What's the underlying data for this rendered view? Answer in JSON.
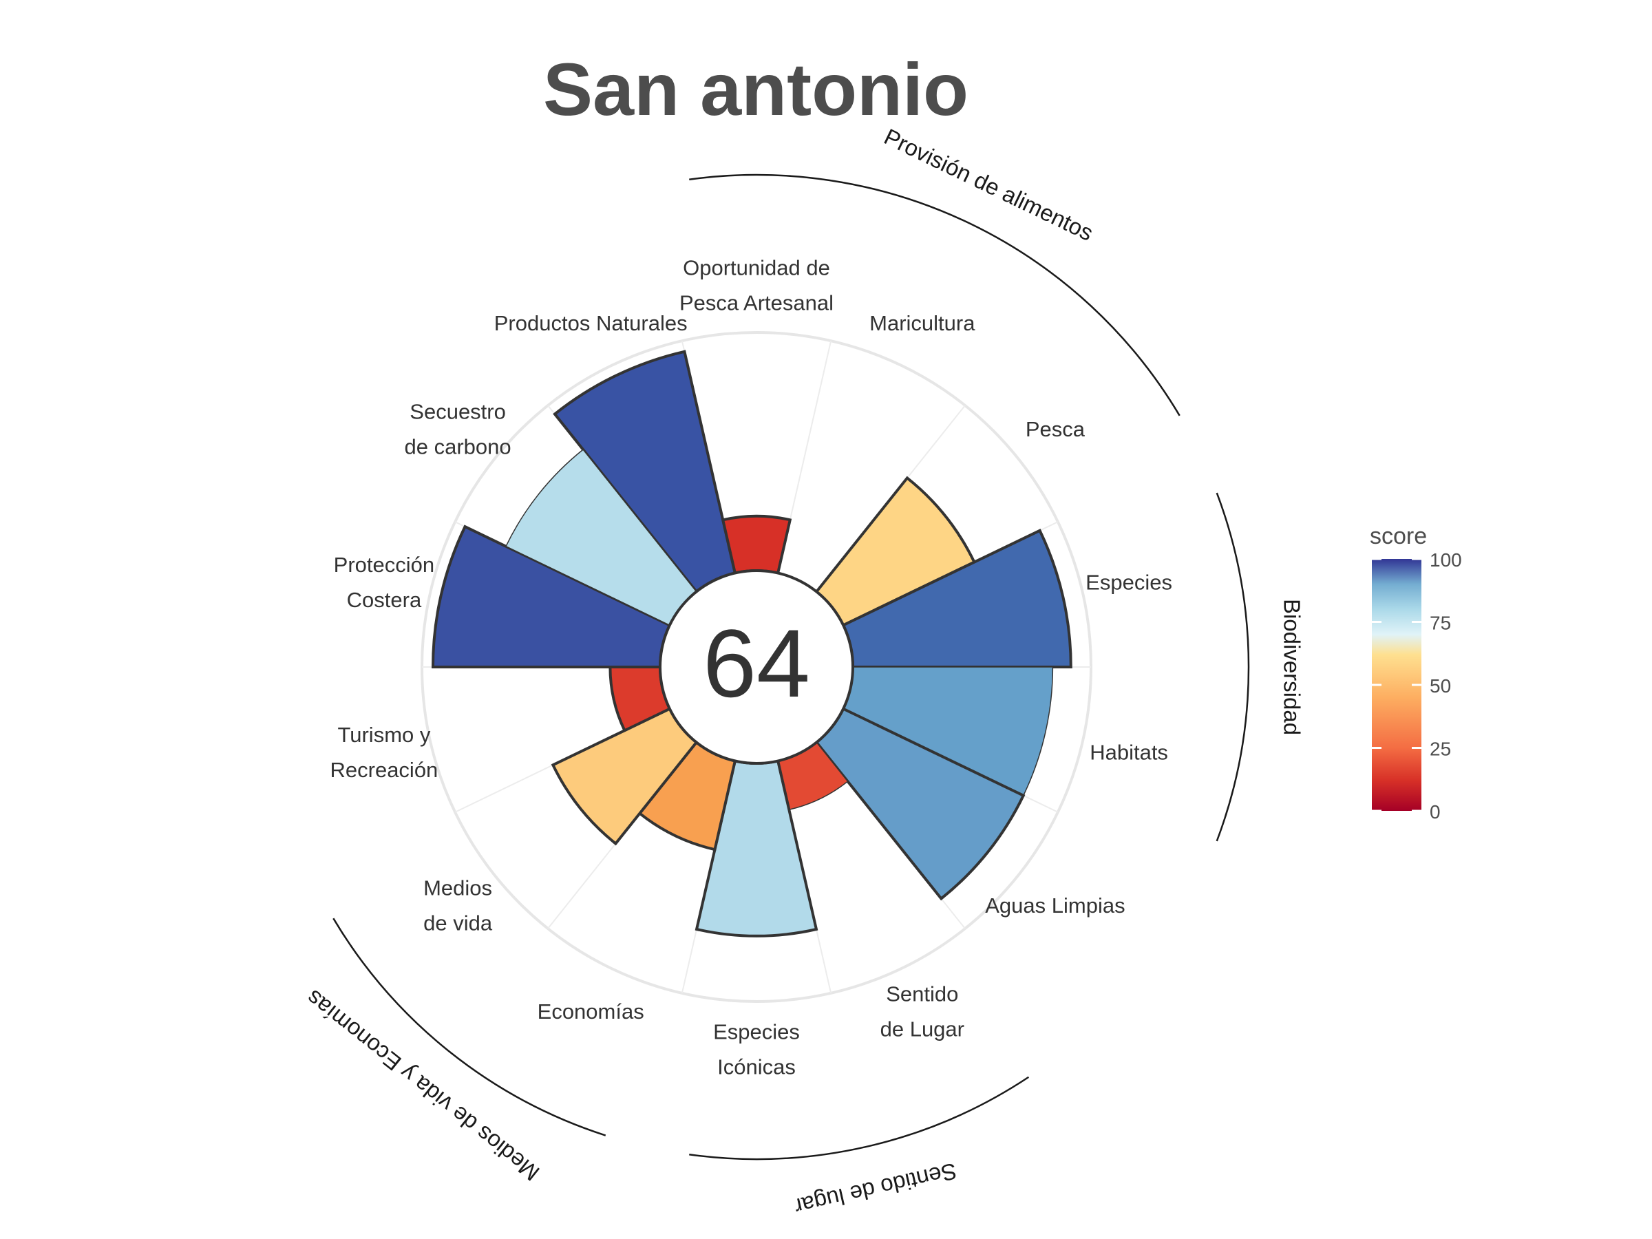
{
  "chart_data": {
    "type": "polar-bar",
    "title": "San antonio",
    "center_score": "64",
    "legend": {
      "title": "score",
      "ticks": [
        0,
        25,
        50,
        75,
        100
      ],
      "position": "right"
    },
    "rlim": [
      0,
      100
    ],
    "petals": [
      {
        "label": [
          "Productos Naturales"
        ],
        "value": 100,
        "color": "#3953a4",
        "outlined": true
      },
      {
        "label": [
          "Oportunidad de",
          "Pesca Artesanal"
        ],
        "value": 24,
        "color": "#d73027",
        "outlined": true
      },
      {
        "label": [
          "Maricultura"
        ],
        "value": 0,
        "color": "#ffffff",
        "outlined": false
      },
      {
        "label": [
          "Pesca"
        ],
        "value": 64,
        "color": "#fed585",
        "outlined": true
      },
      {
        "label": [
          "Especies"
        ],
        "value": 96,
        "color": "#4169ae",
        "outlined": true
      },
      {
        "label": [
          "Habitats"
        ],
        "value": 88,
        "color": "#65a0ca",
        "outlined": false
      },
      {
        "label": [
          "Aguas Limpias"
        ],
        "value": 88,
        "color": "#659dc9",
        "outlined": true
      },
      {
        "label": [
          "Sentido",
          "de Lugar"
        ],
        "value": 22,
        "color": "#e34a33",
        "outlined": false
      },
      {
        "label": [
          "Especies",
          "Icónicas"
        ],
        "value": 76,
        "color": "#b2daea",
        "outlined": true
      },
      {
        "label": [
          "Economías"
        ],
        "value": 40,
        "color": "#f8a050",
        "outlined": true
      },
      {
        "label": [
          "Medios",
          "de vida"
        ],
        "value": 57,
        "color": "#fdcb7c",
        "outlined": true
      },
      {
        "label": [
          "Turismo y",
          "Recreación"
        ],
        "value": 22,
        "color": "#dc3b2c",
        "outlined": true
      },
      {
        "label": [
          "Protección",
          "Costera"
        ],
        "value": 100,
        "color": "#3a51a2",
        "outlined": true
      },
      {
        "label": [
          "Secuestro",
          "de carbono"
        ],
        "value": 80,
        "color": "#b6ddeb",
        "outlined": false
      }
    ],
    "groups": [
      {
        "name": "Provisión de alimentos",
        "petals": [
          1,
          2,
          3
        ]
      },
      {
        "name": "Biodiversidad",
        "petals": [
          4,
          5
        ]
      },
      {
        "name": "Sentido de lugar",
        "petals": [
          7,
          8
        ]
      },
      {
        "name": "Medios de vida y Economías",
        "petals": [
          9,
          10
        ]
      }
    ]
  }
}
